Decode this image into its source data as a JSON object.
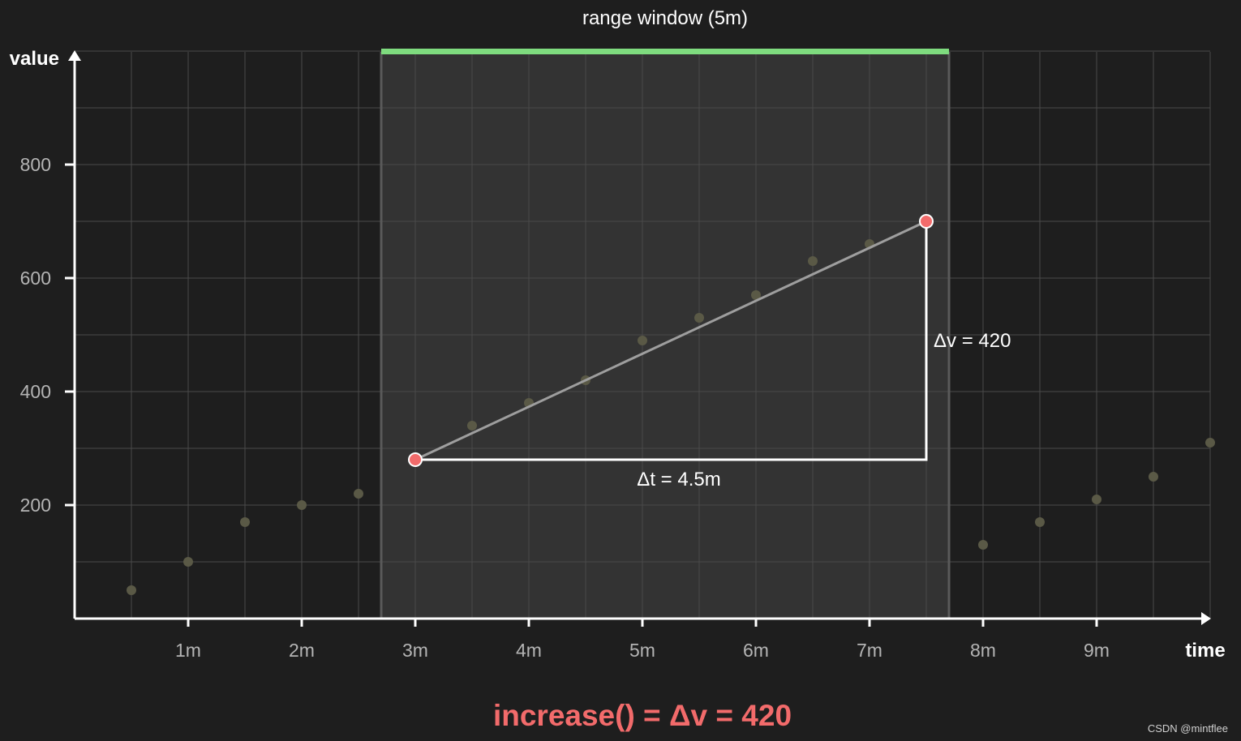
{
  "chart_data": {
    "type": "scatter",
    "title": "range window (5m)",
    "xlabel": "time",
    "ylabel": "value",
    "x_ticks": [
      {
        "value": 1,
        "label": "1m"
      },
      {
        "value": 2,
        "label": "2m"
      },
      {
        "value": 3,
        "label": "3m"
      },
      {
        "value": 4,
        "label": "4m"
      },
      {
        "value": 5,
        "label": "5m"
      },
      {
        "value": 6,
        "label": "6m"
      },
      {
        "value": 7,
        "label": "7m"
      },
      {
        "value": 8,
        "label": "8m"
      },
      {
        "value": 9,
        "label": "9m"
      }
    ],
    "y_ticks": [
      {
        "value": 200,
        "label": "200"
      },
      {
        "value": 400,
        "label": "400"
      },
      {
        "value": 600,
        "label": "600"
      },
      {
        "value": 800,
        "label": "800"
      }
    ],
    "xlim": [
      0,
      10
    ],
    "ylim": [
      0,
      1000
    ],
    "grid": true,
    "points": [
      {
        "x": 0.5,
        "y": 50
      },
      {
        "x": 1.0,
        "y": 100
      },
      {
        "x": 1.5,
        "y": 170
      },
      {
        "x": 2.0,
        "y": 200
      },
      {
        "x": 2.5,
        "y": 220
      },
      {
        "x": 3.0,
        "y": 280
      },
      {
        "x": 3.5,
        "y": 340
      },
      {
        "x": 4.0,
        "y": 380
      },
      {
        "x": 4.5,
        "y": 420
      },
      {
        "x": 5.0,
        "y": 490
      },
      {
        "x": 5.5,
        "y": 530
      },
      {
        "x": 6.0,
        "y": 570
      },
      {
        "x": 6.5,
        "y": 630
      },
      {
        "x": 7.0,
        "y": 660
      },
      {
        "x": 7.5,
        "y": 700
      },
      {
        "x": 8.0,
        "y": 130
      },
      {
        "x": 8.5,
        "y": 170
      },
      {
        "x": 9.0,
        "y": 210
      },
      {
        "x": 9.5,
        "y": 250
      },
      {
        "x": 10.0,
        "y": 310
      }
    ],
    "range_window": {
      "start": 2.7,
      "end": 7.7,
      "label": "range window (5m)"
    },
    "first_sample": {
      "x": 3.0,
      "y": 280
    },
    "last_sample": {
      "x": 7.5,
      "y": 700
    },
    "delta_t_label": "Δt = 4.5m",
    "delta_v_label": "Δv = 420",
    "formula": "increase() = Δv = 420",
    "colors": {
      "background": "#1e1e1e",
      "window_fill": "#333333",
      "window_bar": "#7fdc7f",
      "window_border": "#5a5a5a",
      "grid": "#4a4a4a",
      "axis": "#ffffff",
      "point": "#5a5946",
      "endpoint": "#f26b6b",
      "slope_line": "#9e9e9e",
      "formula": "#f26b6b"
    }
  },
  "watermark": "CSDN @mintflee"
}
